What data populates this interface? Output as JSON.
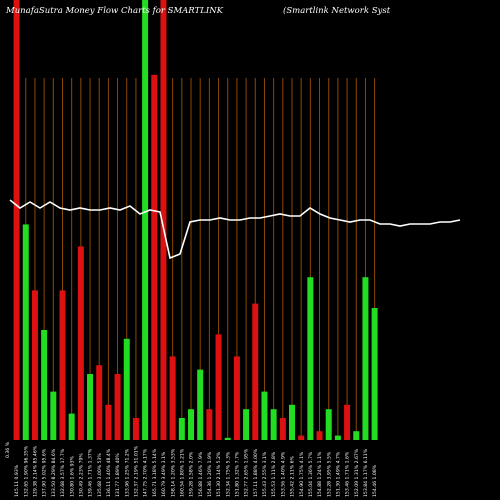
{
  "chart_data": {
    "type": "bar",
    "title": "MunafaSutra  Money Flow  Charts for SMARTLINK",
    "subtitle": "(Smartlink Network Syst",
    "colors": {
      "background": "#000000",
      "up": "#22dd22",
      "down": "#dd1111",
      "grid": "#8a4a00",
      "line": "#ffffff"
    },
    "ylim": [
      0,
      100
    ],
    "axis_label": "0.36 %",
    "bars": [
      {
        "color": "down",
        "value": 100,
        "label": "145.11 0.93%"
      },
      {
        "color": "up",
        "value": 49,
        "label": "132.65 1.90% 96.35%"
      },
      {
        "color": "down",
        "value": 34,
        "label": "129.38 2.14% 85.46%"
      },
      {
        "color": "up",
        "value": 25,
        "label": "137.90 5.02% 95.6%"
      },
      {
        "color": "up",
        "value": 11,
        "label": "133.50 8.29% 84.6%"
      },
      {
        "color": "down",
        "value": 34,
        "label": "132.68 3.57% 17.7%"
      },
      {
        "color": "up",
        "value": 6,
        "label": "130.80 1.6% 93%"
      },
      {
        "color": "down",
        "value": 44,
        "label": "130.49 2.23% 79%"
      },
      {
        "color": "up",
        "value": 15,
        "label": "139.46 1.71% 1.37%"
      },
      {
        "color": "down",
        "value": 17,
        "label": "135.68 3.00% 53%"
      },
      {
        "color": "down",
        "value": 8,
        "label": "136.11 1.40% 48.4%"
      },
      {
        "color": "down",
        "value": 15,
        "label": "131.77 1.89% 40%"
      },
      {
        "color": "up",
        "value": 23,
        "label": "133.96 1.25% 71.2%"
      },
      {
        "color": "down",
        "value": 5,
        "label": "132.37 2.19% 51.01%"
      },
      {
        "color": "up",
        "value": 100,
        "label": "147.75 2.70% 4.17%"
      },
      {
        "color": "down",
        "value": 83,
        "label": "165.71 3.18% 5.14%"
      },
      {
        "color": "down",
        "value": 100,
        "label": "160.79 3.49% 3.1%"
      },
      {
        "color": "down",
        "value": 19,
        "label": "158.14 1.20% 3.53%"
      },
      {
        "color": "up",
        "value": 5,
        "label": "160.54 1.80% 1.21%"
      },
      {
        "color": "up",
        "value": 7,
        "label": "159.28 1.58% 2.0%"
      },
      {
        "color": "up",
        "value": 16,
        "label": "156.88 1.46% 7.9%"
      },
      {
        "color": "down",
        "value": 7,
        "label": "154.36 1.20% 1.9%"
      },
      {
        "color": "down",
        "value": 24,
        "label": "151.30 2.14% 5.2%"
      },
      {
        "color": "up",
        "value": 0.5,
        "label": "152.34 1.75% 5.3%"
      },
      {
        "color": "down",
        "value": 19,
        "label": "151.80 1.32% 7.7%"
      },
      {
        "color": "up",
        "value": 7,
        "label": "152.77 2.65% 1.95%"
      },
      {
        "color": "down",
        "value": 31,
        "label": "157.11 1.88% 4.00%"
      },
      {
        "color": "up",
        "value": 11,
        "label": "155.43 2.55% 3.1%"
      },
      {
        "color": "up",
        "value": 7,
        "label": "155.53 1.11% 2.8%"
      },
      {
        "color": "down",
        "value": 5,
        "label": "153.56 1.40% 4.9%"
      },
      {
        "color": "up",
        "value": 8,
        "label": "155.42 2.11% 6%"
      },
      {
        "color": "down",
        "value": 1,
        "label": "154.90 1.75% 4.1%"
      },
      {
        "color": "up",
        "value": 37,
        "label": "155.04 1.36% 5.7%"
      },
      {
        "color": "down",
        "value": 2,
        "label": "154.88 1.24% 1.1%"
      },
      {
        "color": "up",
        "value": 7,
        "label": "152.28 3.95% 5.5%"
      },
      {
        "color": "up",
        "value": 1,
        "label": "151.30 1.49% 4.7%"
      },
      {
        "color": "down",
        "value": 8,
        "label": "153.46 1.71% 1.6%"
      },
      {
        "color": "up",
        "value": 2,
        "label": "152.09 1.31% 2.67%"
      },
      {
        "color": "up",
        "value": 37,
        "label": "153.84 1.17% 6.11%"
      },
      {
        "color": "up",
        "value": 30,
        "label": "154.46 1.08%"
      }
    ],
    "line": [
      50,
      46,
      49,
      46,
      49,
      46,
      45,
      46,
      45,
      45,
      46,
      45,
      47,
      43,
      45,
      44,
      21,
      23,
      39,
      40,
      40,
      41,
      40,
      40,
      41,
      41,
      42,
      43,
      42,
      42,
      46,
      43,
      41,
      40,
      39,
      40,
      40,
      38,
      38,
      37,
      38,
      38,
      38,
      39,
      39,
      40
    ]
  }
}
